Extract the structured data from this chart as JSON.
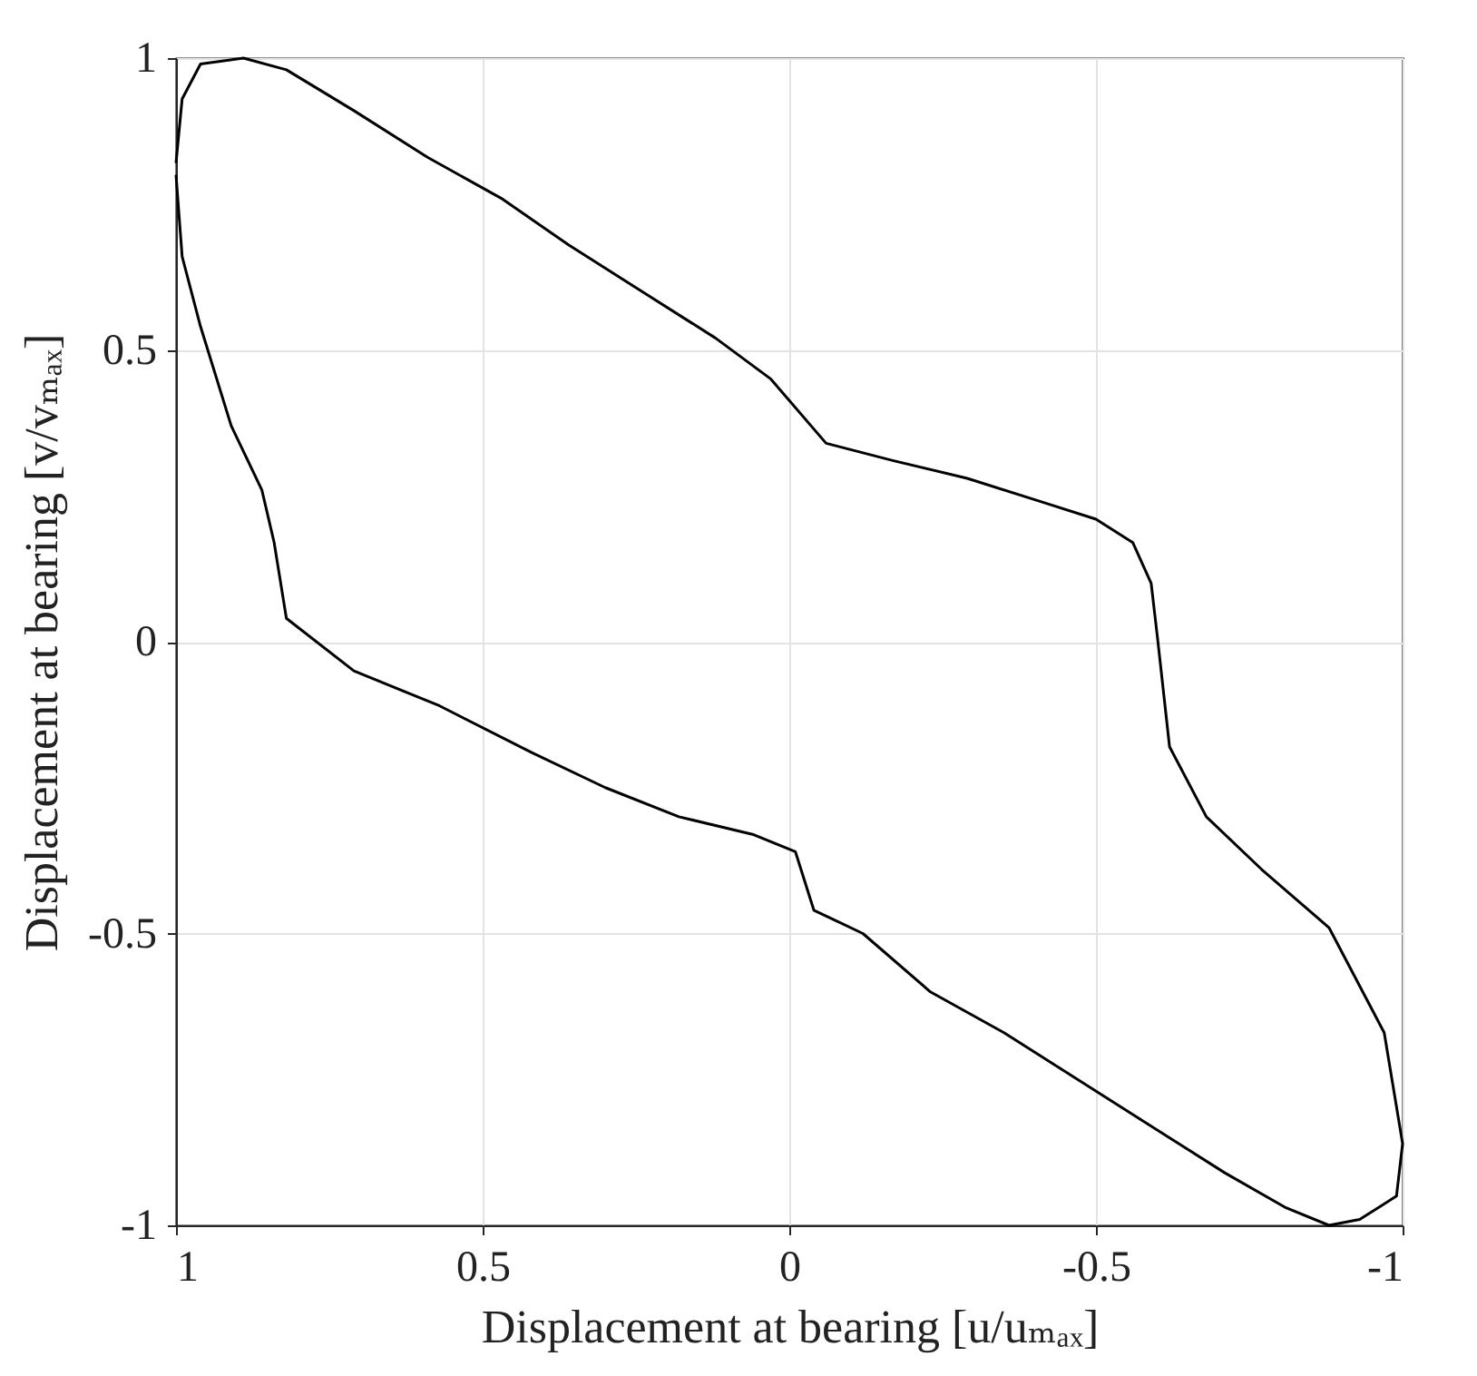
{
  "chart_data": {
    "type": "line",
    "xlabel": "Displacement at bearing [u/uₘₐₓ]",
    "ylabel": "Displacement at bearing [v/vₘₐₓ]",
    "xlim": [
      1,
      -1
    ],
    "xticks": [
      1,
      0.5,
      0,
      -0.5,
      -1
    ],
    "ylim": [
      -1,
      1
    ],
    "yticks": [
      -1,
      -0.5,
      0,
      0.5,
      1
    ],
    "grid": true,
    "series": [
      {
        "color": "#000000",
        "x": [
          1.0,
          0.99,
          0.96,
          0.89,
          0.82,
          0.71,
          0.59,
          0.47,
          0.36,
          0.24,
          0.12,
          0.03,
          -0.06,
          -0.17,
          -0.29,
          -0.41,
          -0.5,
          -0.56,
          -0.59,
          -0.6,
          -0.62,
          -0.68,
          -0.77,
          -0.88,
          -0.97,
          -1.0,
          -0.99,
          -0.93,
          -0.88,
          -0.81,
          -0.71,
          -0.59,
          -0.47,
          -0.35,
          -0.23,
          -0.12,
          -0.04,
          -0.01,
          0.06,
          0.18,
          0.3,
          0.42,
          0.57,
          0.71,
          0.82,
          0.84,
          0.86,
          0.91,
          0.96,
          0.99,
          1.0
        ],
        "values": [
          0.82,
          0.93,
          0.99,
          1.0,
          0.98,
          0.91,
          0.83,
          0.76,
          0.68,
          0.6,
          0.52,
          0.45,
          0.34,
          0.31,
          0.28,
          0.24,
          0.21,
          0.17,
          0.1,
          0.01,
          -0.18,
          -0.3,
          -0.39,
          -0.49,
          -0.67,
          -0.86,
          -0.95,
          -0.99,
          -1.0,
          -0.97,
          -0.91,
          -0.83,
          -0.75,
          -0.67,
          -0.6,
          -0.5,
          -0.46,
          -0.36,
          -0.33,
          -0.3,
          -0.25,
          -0.19,
          -0.11,
          -0.05,
          0.04,
          0.17,
          0.26,
          0.37,
          0.54,
          0.66,
          0.8
        ]
      }
    ]
  }
}
